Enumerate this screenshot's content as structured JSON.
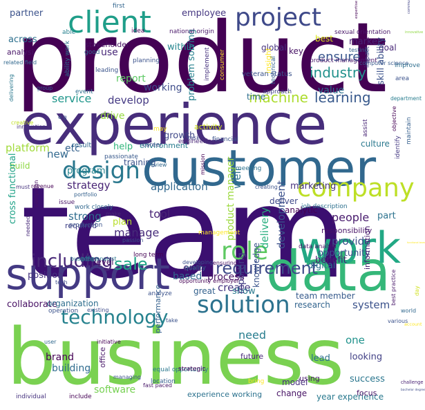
{
  "cloud": {
    "words": [
      {
        "text": "product",
        "color": "#440154"
      },
      {
        "text": "team",
        "color": "#3b0f70"
      },
      {
        "text": "business",
        "color": "#7ad151"
      },
      {
        "text": "experience",
        "color": "#472d7b"
      },
      {
        "text": "customer",
        "color": "#31688e"
      },
      {
        "text": "data",
        "color": "#35b779"
      },
      {
        "text": "work",
        "color": "#22a884"
      },
      {
        "text": "support",
        "color": "#443a83"
      },
      {
        "text": "client",
        "color": "#1f9e89"
      },
      {
        "text": "project",
        "color": "#3e4989"
      },
      {
        "text": "company",
        "color": "#bddf26"
      },
      {
        "text": "design",
        "color": "#2a788e"
      },
      {
        "text": "role",
        "color": "#5ec962"
      },
      {
        "text": "solution",
        "color": "#2c728e"
      },
      {
        "text": "technology",
        "color": "#26828e"
      },
      {
        "text": "including",
        "color": "#482878"
      },
      {
        "text": "requirement",
        "color": "#3e4a89"
      },
      {
        "text": "sale",
        "color": "#20a486"
      },
      {
        "text": "machine",
        "color": "#addc30"
      },
      {
        "text": "learning",
        "color": "#38598c"
      },
      {
        "text": "industry",
        "color": "#21918c"
      },
      {
        "text": "ensure",
        "color": "#39568c"
      },
      {
        "text": "market",
        "color": "#482173"
      },
      {
        "text": "goal",
        "color": "#482878"
      },
      {
        "text": "service",
        "color": "#1f968b"
      },
      {
        "text": "develop",
        "color": "#443983"
      },
      {
        "text": "growth",
        "color": "#3f4788"
      },
      {
        "text": "drive",
        "color": "#95d840"
      },
      {
        "text": "within",
        "color": "#25858e"
      },
      {
        "text": "employee",
        "color": "#453781"
      },
      {
        "text": "partner",
        "color": "#3b528b"
      },
      {
        "text": "across",
        "color": "#2d708e"
      },
      {
        "text": "analysi",
        "color": "#481567"
      },
      {
        "text": "stakeholder",
        "color": "#471063"
      },
      {
        "text": "key",
        "color": "#471365"
      },
      {
        "text": "global",
        "color": "#46327e"
      },
      {
        "text": "value",
        "color": "#2d708e"
      },
      {
        "text": "insight",
        "color": "#fde725"
      },
      {
        "text": "communication skill",
        "color": "#414487"
      },
      {
        "text": "skill ability",
        "color": "#3b528b"
      },
      {
        "text": "platform",
        "color": "#a0da39"
      },
      {
        "text": "new",
        "color": "#31688e"
      },
      {
        "text": "etc",
        "color": "#34618d"
      },
      {
        "text": "result",
        "color": "#31688e"
      },
      {
        "text": "help",
        "color": "#31b57b"
      },
      {
        "text": "environment",
        "color": "#287c8e"
      },
      {
        "text": "culture",
        "color": "#2a788e"
      },
      {
        "text": "application",
        "color": "#31688e"
      },
      {
        "text": "strategy",
        "color": "#482475"
      },
      {
        "text": "well",
        "color": "#2c728e"
      },
      {
        "text": "marketing",
        "color": "#46307e"
      },
      {
        "text": "build",
        "color": "#8fd744"
      },
      {
        "text": "strong",
        "color": "#2f6c8e"
      },
      {
        "text": "tool",
        "color": "#482475"
      },
      {
        "text": "manage",
        "color": "#472c7a"
      },
      {
        "text": "plan",
        "color": "#b8de29"
      },
      {
        "text": "deliver",
        "color": "#3f4889"
      },
      {
        "text": "analytic",
        "color": "#440154"
      },
      {
        "text": "people",
        "color": "#481b6d"
      },
      {
        "text": "part",
        "color": "#2c728e"
      },
      {
        "text": "responsibility",
        "color": "#481467"
      },
      {
        "text": "delivery",
        "color": "#29af7f"
      },
      {
        "text": "development",
        "color": "#3b518b"
      },
      {
        "text": "product manager",
        "color": "#9bd93c"
      },
      {
        "text": "provide",
        "color": "#3c4f8a"
      },
      {
        "text": "opportunity",
        "color": "#3c508b"
      },
      {
        "text": "digital",
        "color": "#2c718e"
      },
      {
        "text": "benefit",
        "color": "#481f70"
      },
      {
        "text": "cross functional",
        "color": "#1fa287"
      },
      {
        "text": "position",
        "color": "#46337f"
      },
      {
        "text": "based",
        "color": "#31688e"
      },
      {
        "text": "process",
        "color": "#471365"
      },
      {
        "text": "create",
        "color": "#453581"
      },
      {
        "text": "show",
        "color": "#29798e"
      },
      {
        "text": "great",
        "color": "#34618d"
      },
      {
        "text": "collaborate",
        "color": "#471063"
      },
      {
        "text": "organization",
        "color": "#2e6e8e"
      },
      {
        "text": "performance",
        "color": "#34608d"
      },
      {
        "text": "reporting",
        "color": "#433e85"
      },
      {
        "text": "knowledge",
        "color": "#3a548c"
      },
      {
        "text": "need",
        "color": "#287d8e"
      },
      {
        "text": "research",
        "color": "#32648e"
      },
      {
        "text": "team member",
        "color": "#375a8c"
      },
      {
        "text": "information",
        "color": "#481f70"
      },
      {
        "text": "one",
        "color": "#20928c"
      },
      {
        "text": "lead",
        "color": "#2d708e"
      },
      {
        "text": "looking",
        "color": "#424186"
      },
      {
        "text": "system",
        "color": "#3b528b"
      },
      {
        "text": "success",
        "color": "#2a768e"
      },
      {
        "text": "year experience",
        "color": "#29798e"
      },
      {
        "text": "brand",
        "color": "#440154"
      },
      {
        "text": "building",
        "color": "#2f6c8e"
      },
      {
        "text": "software",
        "color": "#77d153"
      },
      {
        "text": "experience working",
        "color": "#2c728e"
      },
      {
        "text": "change",
        "color": "#471365"
      },
      {
        "text": "model",
        "color": "#472f7d"
      },
      {
        "text": "report",
        "color": "#5cc863"
      },
      {
        "text": "working",
        "color": "#3e4c8a"
      },
      {
        "text": "problem solving",
        "color": "#26818e"
      },
      {
        "text": "time",
        "color": "#2e6d8e"
      },
      {
        "text": "best",
        "color": "#d8e219"
      },
      {
        "text": "activity",
        "color": "#d0e11c"
      },
      {
        "text": "use",
        "color": "#482878"
      },
      {
        "text": "program",
        "color": "#25838e"
      },
      {
        "text": "training",
        "color": "#3b528b"
      },
      {
        "text": "required",
        "color": "#414287"
      },
      {
        "text": "end",
        "color": "#482576"
      },
      {
        "text": "level",
        "color": "#471063"
      },
      {
        "text": "offer",
        "color": "#2a768e"
      },
      {
        "text": "office",
        "color": "#481769"
      },
      {
        "text": "future",
        "color": "#482979"
      },
      {
        "text": "using",
        "color": "#481b6d"
      },
      {
        "text": "focus",
        "color": "#481467"
      },
      {
        "text": "bachelor degree",
        "color": "#3e4c8a"
      },
      {
        "text": "challenge",
        "color": "#482173"
      },
      {
        "text": "first",
        "color": "#32658e"
      },
      {
        "text": "able",
        "color": "#26818e"
      },
      {
        "text": "idea",
        "color": "#440154"
      },
      {
        "text": "national origin",
        "color": "#481769"
      },
      {
        "text": "expertise",
        "color": "#440154"
      },
      {
        "text": "innovative",
        "color": "#8fd744"
      },
      {
        "text": "sexual orientation",
        "color": "#481668"
      },
      {
        "text": "testing",
        "color": "#34618d"
      },
      {
        "text": "related field",
        "color": "#31688e"
      },
      {
        "text": "good",
        "color": "#31688e"
      },
      {
        "text": "leading",
        "color": "#3a538b"
      },
      {
        "text": "ability work",
        "color": "#2c728e"
      },
      {
        "text": "planning",
        "color": "#3b528b"
      },
      {
        "text": "implement",
        "color": "#46327e"
      },
      {
        "text": "consumer",
        "color": "#fde725"
      },
      {
        "text": "technical",
        "color": "#34618d"
      },
      {
        "text": "product management",
        "color": "#48186a"
      },
      {
        "text": "computer science",
        "color": "#38598c"
      },
      {
        "text": "impact",
        "color": "#3e4989"
      },
      {
        "text": "improve",
        "color": "#2e6e8e"
      },
      {
        "text": "area",
        "color": "#3b528b"
      },
      {
        "text": "group",
        "color": "#355f8d"
      },
      {
        "text": "event",
        "color": "#2d708e"
      },
      {
        "text": "veteran status",
        "color": "#3b528b"
      },
      {
        "text": "approach",
        "color": "#424086"
      },
      {
        "text": "department",
        "color": "#287d8e"
      },
      {
        "text": "delivering",
        "color": "#2a788e"
      },
      {
        "text": "creative",
        "color": "#c0df25"
      },
      {
        "text": "innovation",
        "color": "#46327e"
      },
      {
        "text": "e g",
        "color": "#3b528b"
      },
      {
        "text": "may",
        "color": "#fde725"
      },
      {
        "text": "task",
        "color": "#404688"
      },
      {
        "text": "financial",
        "color": "#3b528b"
      },
      {
        "text": "assist",
        "color": "#482576"
      },
      {
        "text": "objective",
        "color": "#440154"
      },
      {
        "text": "maintain",
        "color": "#355f8d"
      },
      {
        "text": "career",
        "color": "#3e4c8a"
      },
      {
        "text": "passionate",
        "color": "#38598c"
      },
      {
        "text": "review",
        "color": "#31688e"
      },
      {
        "text": "engineering",
        "color": "#482677"
      },
      {
        "text": "meeting",
        "color": "#2c728e"
      },
      {
        "text": "mission",
        "color": "#440154"
      },
      {
        "text": "must",
        "color": "#46327e"
      },
      {
        "text": "identify",
        "color": "#443983"
      },
      {
        "text": "revenue",
        "color": "#440154"
      },
      {
        "text": "issue",
        "color": "#481467"
      },
      {
        "text": "portfolio",
        "color": "#34618d"
      },
      {
        "text": "creating",
        "color": "#3b528b"
      },
      {
        "text": "work closely",
        "color": "#31688e"
      },
      {
        "text": "make",
        "color": "#482878"
      },
      {
        "text": "campaign",
        "color": "#471063"
      },
      {
        "text": "job description",
        "color": "#2d708e"
      },
      {
        "text": "needed",
        "color": "#472a7a"
      },
      {
        "text": "management",
        "color": "#fde725"
      },
      {
        "text": "passion",
        "color": "#3b528b"
      },
      {
        "text": "production",
        "color": "#3b528b"
      },
      {
        "text": "data analysi",
        "color": "#481668"
      },
      {
        "text": "business analyst",
        "color": "#2a788e"
      },
      {
        "text": "long term",
        "color": "#440154"
      },
      {
        "text": "developing",
        "color": "#3b528b"
      },
      {
        "text": "quality",
        "color": "#31688e"
      },
      {
        "text": "ensuring",
        "color": "#471063"
      },
      {
        "text": "functional team",
        "color": "#fde725"
      },
      {
        "text": "tech",
        "color": "#3e4c8a"
      },
      {
        "text": "opportunity employer",
        "color": "#440154"
      },
      {
        "text": "day",
        "color": "#d0e11c"
      },
      {
        "text": "analyze",
        "color": "#3b528b"
      },
      {
        "text": "best practice",
        "color": "#48186a"
      },
      {
        "text": "world",
        "color": "#31688e"
      },
      {
        "text": "account",
        "color": "#fde725"
      },
      {
        "text": "operation",
        "color": "#3b528b"
      },
      {
        "text": "existing",
        "color": "#3e4c8a"
      },
      {
        "text": "take",
        "color": "#3b528b"
      },
      {
        "text": "various",
        "color": "#3b528b"
      },
      {
        "text": "user",
        "color": "#31688e"
      },
      {
        "text": "initiative",
        "color": "#440154"
      },
      {
        "text": "fast paced",
        "color": "#481668"
      },
      {
        "text": "equal opportunity",
        "color": "#2a788e"
      },
      {
        "text": "strategic",
        "color": "#440154"
      },
      {
        "text": "bring",
        "color": "#fde725"
      },
      {
        "text": "managing",
        "color": "#3b528b"
      },
      {
        "text": "location",
        "color": "#355f8d"
      },
      {
        "text": "individual",
        "color": "#46327e"
      },
      {
        "text": "include",
        "color": "#440154"
      }
    ]
  }
}
